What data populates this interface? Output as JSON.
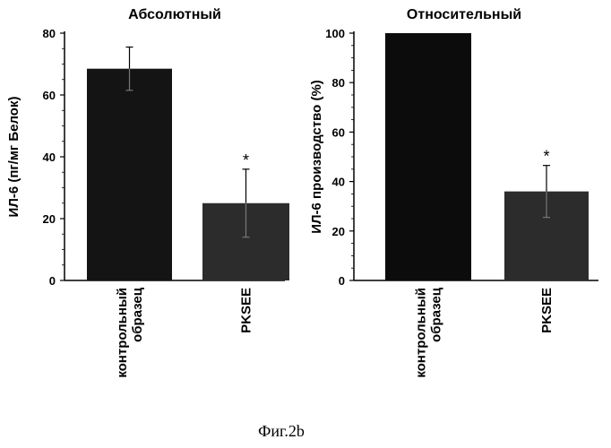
{
  "caption": "Фиг.2b",
  "chart_data": [
    {
      "type": "bar",
      "title": "Абсолютный",
      "ylabel": "ИЛ-6 (пг/мг Белок)",
      "xlabel": "",
      "ylim": [
        0,
        80
      ],
      "yticks": [
        "0",
        "20",
        "40",
        "60",
        "80"
      ],
      "categories": [
        [
          "контрольный",
          "образец"
        ],
        [
          "PKSEE"
        ]
      ],
      "values": [
        68.5,
        25
      ],
      "errors": [
        7,
        11
      ],
      "annotations": [
        "",
        "*"
      ],
      "colors": [
        "#141414",
        "#2c2c2c"
      ]
    },
    {
      "type": "bar",
      "title": "Относительный",
      "ylabel": "ИЛ-6 производство (%)",
      "xlabel": "",
      "ylim": [
        0,
        100
      ],
      "yticks": [
        "0",
        "20",
        "40",
        "60",
        "80",
        "100"
      ],
      "categories": [
        [
          "контрольный",
          "образец"
        ],
        [
          "PKSEE"
        ]
      ],
      "values": [
        100,
        36
      ],
      "errors": [
        0,
        10.5
      ],
      "annotations": [
        "",
        "*"
      ],
      "colors": [
        "#0c0c0c",
        "#2c2c2c"
      ]
    }
  ]
}
